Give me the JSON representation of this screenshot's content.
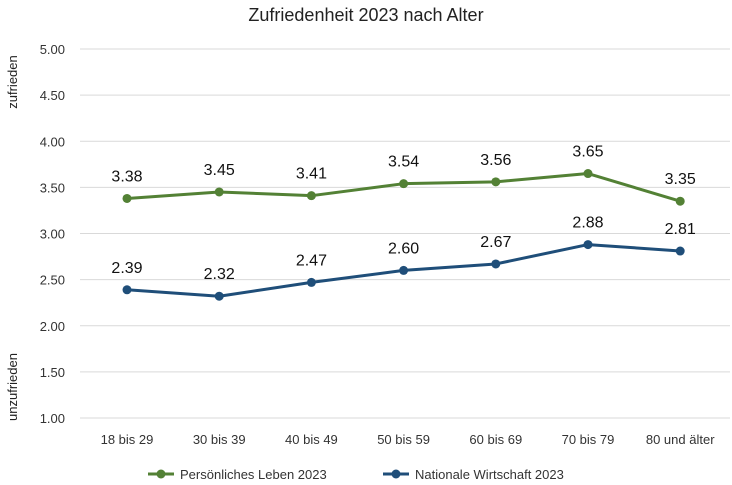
{
  "chart_data": {
    "type": "line",
    "title": "Zufriedenheit 2023 nach Alter",
    "categories": [
      "18 bis 29",
      "30 bis 39",
      "40 bis 49",
      "50 bis 59",
      "60 bis 69",
      "70 bis 79",
      "80 und älter"
    ],
    "series": [
      {
        "name": "Persönliches Leben 2023",
        "values": [
          3.38,
          3.45,
          3.41,
          3.54,
          3.56,
          3.65,
          3.35
        ],
        "labels": [
          "3.38",
          "3.45",
          "3.41",
          "3.54",
          "3.56",
          "3.65",
          "3.35"
        ],
        "color": "#538135"
      },
      {
        "name": "Nationale Wirtschaft 2023",
        "values": [
          2.39,
          2.32,
          2.47,
          2.6,
          2.67,
          2.88,
          2.81
        ],
        "labels": [
          "2.39",
          "2.32",
          "2.47",
          "2.60",
          "2.67",
          "2.88",
          "2.81"
        ],
        "color": "#1F4E79"
      }
    ],
    "ylim": [
      1.0,
      5.0
    ],
    "yticks": [
      1.0,
      1.5,
      2.0,
      2.5,
      3.0,
      3.5,
      4.0,
      4.5,
      5.0
    ],
    "ytick_labels": [
      "1.00",
      "1.50",
      "2.00",
      "2.50",
      "3.00",
      "3.50",
      "4.00",
      "4.50",
      "5.00"
    ],
    "ylabel_top": "zufrieden",
    "ylabel_bottom": "unzufrieden",
    "grid": true,
    "legend_position": "bottom"
  }
}
